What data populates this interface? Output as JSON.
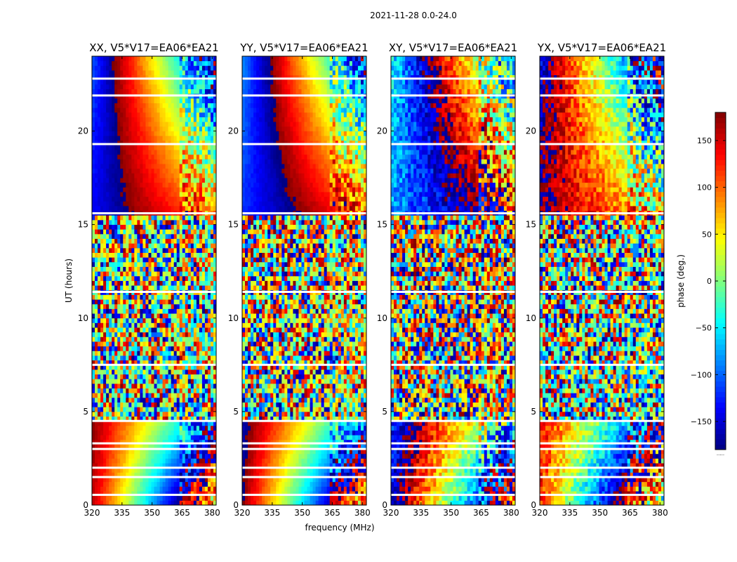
{
  "figure_title": "2021-11-28 0.0-24.0",
  "chart_data": {
    "type": "heatmap",
    "title": "2021-11-28 0.0-24.0",
    "xlabel": "frequency (MHz)",
    "ylabel": "UT (hours)",
    "xlim": [
      320,
      382
    ],
    "ylim": [
      0,
      24
    ],
    "x_ticks": [
      320,
      335,
      350,
      365,
      380
    ],
    "y_ticks": [
      0,
      5,
      10,
      15,
      20
    ],
    "colorbar": {
      "label": "phase (deg.)",
      "range": [
        -180,
        180
      ],
      "ticks": [
        150,
        100,
        50,
        0,
        -50,
        -100,
        -150
      ],
      "tick_labels": [
        "150",
        "100",
        "50",
        "0",
        "−50",
        "−100",
        "−150"
      ],
      "colormap": "jet",
      "bottom_note": "....."
    },
    "panels": [
      {
        "title": "XX, V5*V17=EA06*EA21",
        "pol": "XX",
        "ylabel": "UT (hours)",
        "xlabel": ""
      },
      {
        "title": "YY, V5*V17=EA06*EA21",
        "pol": "YY",
        "ylabel": "",
        "xlabel": "frequency (MHz)"
      },
      {
        "title": "XY, V5*V17=EA06*EA21",
        "pol": "XY",
        "ylabel": "",
        "xlabel": ""
      },
      {
        "title": "YX, V5*V17=EA06*EA21",
        "pol": "YX",
        "ylabel": "",
        "xlabel": ""
      }
    ],
    "gaps_ut": [
      0.55,
      1.5,
      2.0,
      3.0,
      3.3,
      4.5,
      7.5,
      11.4,
      15.6,
      19.3,
      21.9,
      22.8
    ],
    "noisy_ut_ranges": [
      [
        4.5,
        7.5
      ],
      [
        7.5,
        15.5
      ]
    ]
  }
}
